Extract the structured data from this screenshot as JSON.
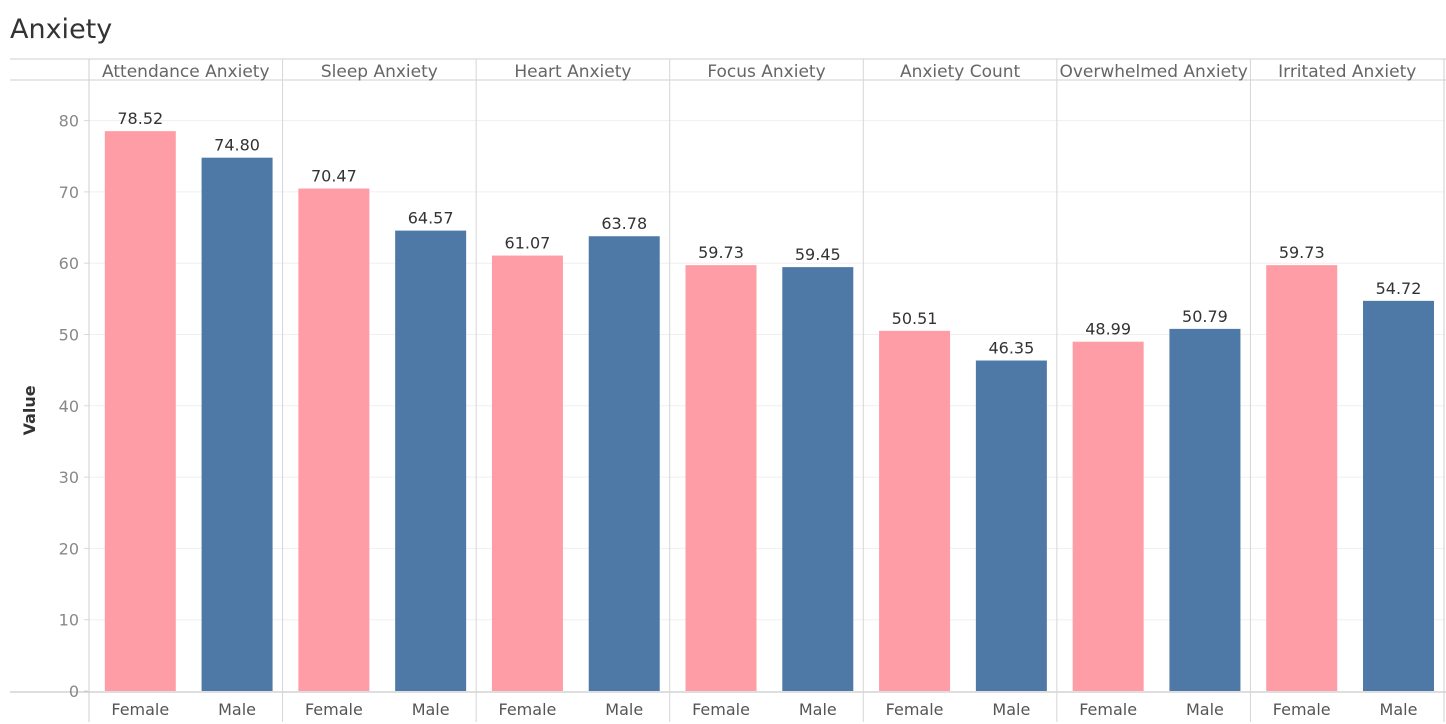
{
  "title": "Anxiety",
  "chart_data": {
    "type": "bar",
    "title": "Anxiety",
    "ylabel": "Value",
    "xlabel": "",
    "ylim": [
      0,
      86
    ],
    "yticks": [
      0,
      10,
      20,
      30,
      40,
      50,
      60,
      70,
      80
    ],
    "grid": true,
    "categories": [
      "Female",
      "Male"
    ],
    "colors": {
      "Female": "#ff9da7",
      "Male": "#4e79a7"
    },
    "panels": [
      {
        "name": "Attendance Anxiety",
        "values": [
          78.52,
          74.8
        ],
        "labels": [
          "78.52",
          "74.80"
        ]
      },
      {
        "name": "Sleep Anxiety",
        "values": [
          70.47,
          64.57
        ],
        "labels": [
          "70.47",
          "64.57"
        ]
      },
      {
        "name": "Heart Anxiety",
        "values": [
          61.07,
          63.78
        ],
        "labels": [
          "61.07",
          "63.78"
        ]
      },
      {
        "name": "Focus Anxiety",
        "values": [
          59.73,
          59.45
        ],
        "labels": [
          "59.73",
          "59.45"
        ]
      },
      {
        "name": "Anxiety Count",
        "values": [
          50.51,
          46.35
        ],
        "labels": [
          "50.51",
          "46.35"
        ]
      },
      {
        "name": "Overwhelmed Anxiety",
        "values": [
          48.99,
          50.79
        ],
        "labels": [
          "48.99",
          "50.79"
        ]
      },
      {
        "name": "Irritated Anxiety",
        "values": [
          59.73,
          54.72
        ],
        "labels": [
          "59.73",
          "54.72"
        ]
      }
    ]
  }
}
